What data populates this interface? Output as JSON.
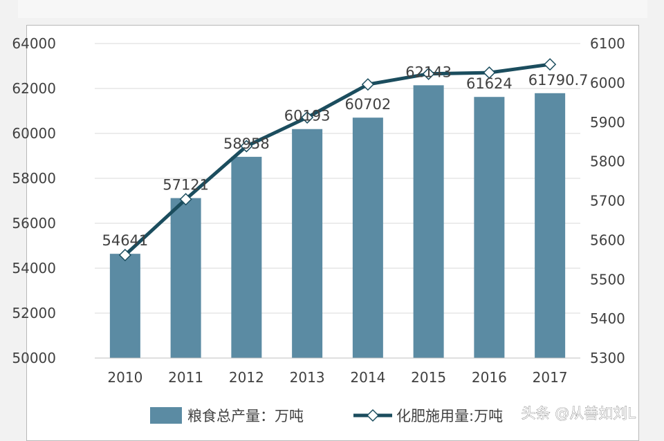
{
  "chart_data": {
    "type": "bar",
    "categories": [
      "2010",
      "2011",
      "2012",
      "2013",
      "2014",
      "2015",
      "2016",
      "2017"
    ],
    "series": [
      {
        "name": "粮食总产量：万吨",
        "type": "bar",
        "axis": "left",
        "values": [
          54641,
          57121,
          58958,
          60193,
          60702,
          62143,
          61624,
          61790.7
        ],
        "labels": [
          "54641",
          "57121",
          "58958",
          "60193",
          "60702",
          "62143",
          "61624",
          "61790.7"
        ]
      },
      {
        "name": "化肥施用量:万吨",
        "type": "line",
        "axis": "right",
        "values": [
          5562,
          5704,
          5839,
          5912,
          5996,
          6023,
          6026,
          6047
        ]
      }
    ],
    "y_left": {
      "min": 50000,
      "max": 64000,
      "ticks": [
        "50000",
        "52000",
        "54000",
        "56000",
        "58000",
        "60000",
        "62000",
        "64000"
      ]
    },
    "y_right": {
      "min": 5300,
      "max": 6100,
      "ticks": [
        "5300",
        "5400",
        "5500",
        "5600",
        "5700",
        "5800",
        "5900",
        "6000",
        "6100"
      ]
    },
    "grid": true,
    "legend_position": "bottom",
    "colors": {
      "bar": "#5b8ba3",
      "line": "#1b4d5e",
      "marker_fill": "#ffffff",
      "grid": "#d9d9d9"
    }
  },
  "watermark": {
    "text": "头条 @从善如刘L"
  }
}
